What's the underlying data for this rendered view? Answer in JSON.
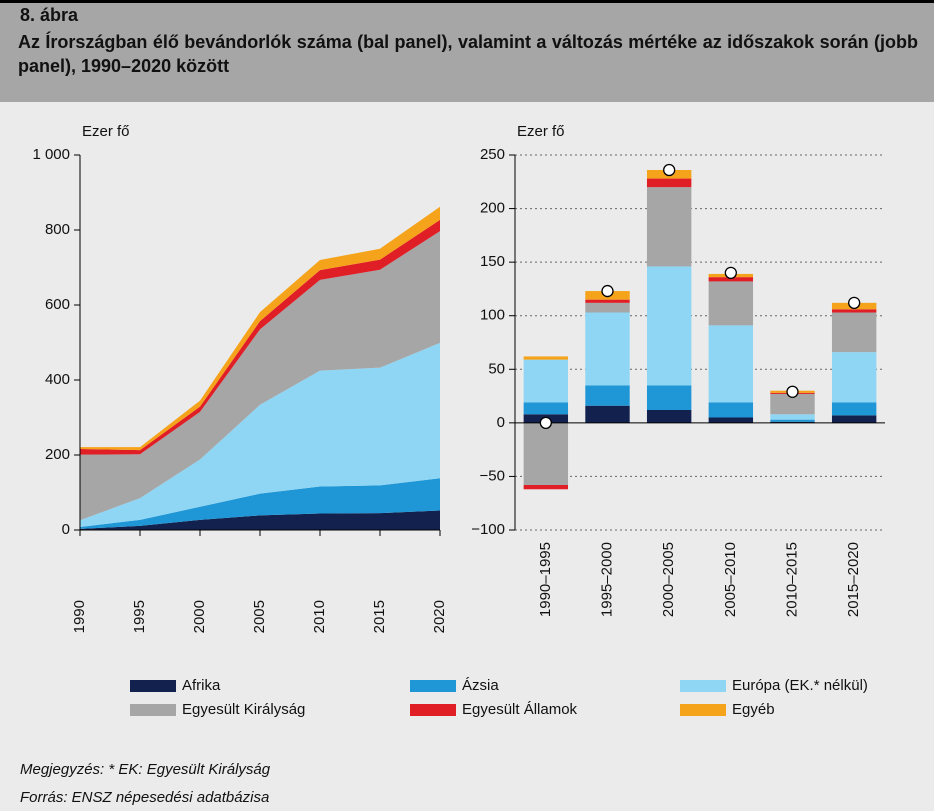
{
  "header": {
    "label": "8. ábra",
    "title": "Az Írországban élő bevándorlók száma (bal panel), valamint a változás mértéke az időszakok során (jobb panel), 1990–2020 között"
  },
  "chart_data": [
    {
      "type": "stacked_area",
      "y_label": "Ezer fő",
      "x": [
        1990,
        1995,
        2000,
        2005,
        2010,
        2015,
        2020
      ],
      "xlim": [
        1990,
        2020
      ],
      "xticks": [
        1990,
        1995,
        2000,
        2005,
        2010,
        2015,
        2020
      ],
      "ylim": [
        0,
        1000
      ],
      "yticks": [
        0,
        200,
        400,
        600,
        800,
        {
          "value": 1000,
          "label": "1 000"
        }
      ],
      "grid": false,
      "series": [
        {
          "name": "Afrika",
          "color": "#13214f",
          "values": [
            3,
            11,
            27,
            39,
            44,
            45,
            52
          ]
        },
        {
          "name": "Ázsia",
          "color": "#1f97d6",
          "values": [
            5,
            16,
            35,
            58,
            72,
            74,
            86
          ]
        },
        {
          "name": "Európa (EK.* nélkül)",
          "color": "#8fd6f5",
          "values": [
            18,
            58,
            126,
            237,
            309,
            314,
            361
          ]
        },
        {
          "name": "Egyesült Királyság",
          "color": "#a6a6a6",
          "values": [
            175,
            117,
            127,
            201,
            242,
            261,
            298
          ]
        },
        {
          "name": "Egyesült Államok",
          "color": "#e01e26",
          "values": [
            15,
            11,
            14,
            22,
            26,
            27,
            30
          ]
        },
        {
          "name": "Egyéb",
          "color": "#f5a31a",
          "values": [
            5,
            8,
            16,
            24,
            27,
            29,
            35
          ]
        }
      ]
    },
    {
      "type": "stacked_bar",
      "y_label": "Ezer fő",
      "categories": [
        "1990–1995",
        "1995–2000",
        "2000–2005",
        "2005–2010",
        "2010–2015",
        "2015–2020"
      ],
      "ylim": [
        -100,
        250
      ],
      "yticks": [
        {
          "value": -100,
          "label": "−100"
        },
        {
          "value": -50,
          "label": "−50"
        },
        0,
        50,
        100,
        150,
        200,
        250
      ],
      "grid": true,
      "series": [
        {
          "color": "#13214f",
          "values": [
            8,
            16,
            12,
            5,
            1,
            7
          ]
        },
        {
          "color": "#1f97d6",
          "values": [
            11,
            19,
            23,
            14,
            2,
            12
          ]
        },
        {
          "color": "#8fd6f5",
          "values": [
            40,
            68,
            111,
            72,
            5,
            47
          ]
        },
        {
          "color": "#a6a6a6",
          "values": [
            -58,
            9,
            74,
            41,
            19,
            37
          ]
        },
        {
          "color": "#e01e26",
          "values": [
            -4,
            3,
            8,
            4,
            1,
            3
          ]
        },
        {
          "color": "#f5a31a",
          "values": [
            3,
            8,
            8,
            3,
            2,
            6
          ]
        }
      ],
      "totals": [
        0,
        123,
        236,
        140,
        29,
        112
      ]
    }
  ],
  "notes": [
    "Megjegyzés: * EK: Egyesült Királyság",
    "Forrás: ENSZ népesedési adatbázisa"
  ]
}
